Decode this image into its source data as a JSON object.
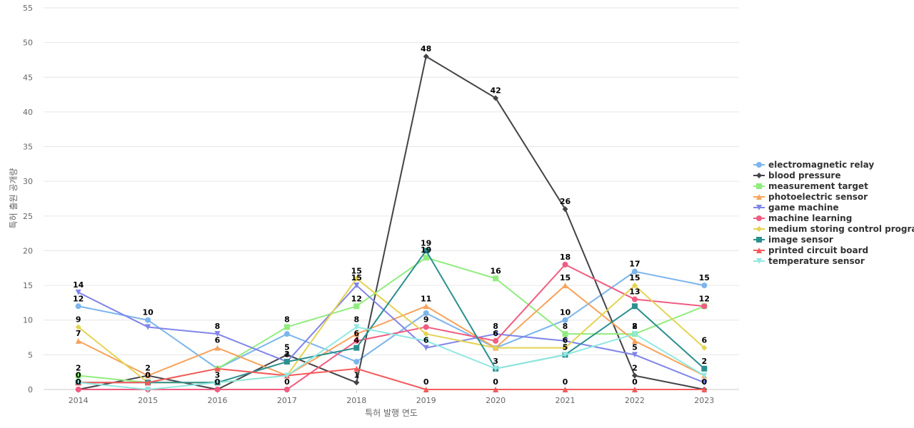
{
  "chart_data": {
    "type": "line",
    "categories": [
      "2014",
      "2015",
      "2016",
      "2017",
      "2018",
      "2019",
      "2020",
      "2021",
      "2022",
      "2023"
    ],
    "xlabel": "특허 발행 연도",
    "ylabel": "특허 출원 공개량",
    "ylim": [
      0,
      55
    ],
    "yticks": [
      0,
      5,
      10,
      15,
      20,
      25,
      30,
      35,
      40,
      45,
      50,
      55
    ],
    "grid": "horizontal",
    "legend_position": "right",
    "series": [
      {
        "name": "electromagnetic relay",
        "color": "#7cb5ec",
        "marker": "circle",
        "values": [
          12,
          10,
          3,
          8,
          4,
          11,
          6,
          10,
          17,
          15
        ]
      },
      {
        "name": "blood pressure",
        "color": "#434348",
        "marker": "diamond",
        "values": [
          0,
          2,
          0,
          5,
          1,
          48,
          42,
          26,
          2,
          0
        ]
      },
      {
        "name": "measurement target",
        "color": "#90ed7d",
        "marker": "square",
        "values": [
          2,
          1,
          3,
          9,
          12,
          19,
          16,
          8,
          8,
          12
        ]
      },
      {
        "name": "photoelectric sensor",
        "color": "#f7a35c",
        "marker": "triangle",
        "values": [
          7,
          2,
          6,
          2,
          8,
          12,
          6,
          15,
          7,
          2
        ]
      },
      {
        "name": "game machine",
        "color": "#8085e9",
        "marker": "triangle-down",
        "values": [
          14,
          9,
          8,
          4,
          15,
          6,
          8,
          7,
          5,
          1
        ]
      },
      {
        "name": "machine learning",
        "color": "#f15c80",
        "marker": "circle",
        "values": [
          0,
          0,
          0,
          0,
          7,
          9,
          7,
          18,
          13,
          12
        ]
      },
      {
        "name": "medium storing control program",
        "color": "#e4d354",
        "marker": "diamond",
        "values": [
          9,
          1,
          1,
          2,
          16,
          8,
          6,
          6,
          15,
          6
        ]
      },
      {
        "name": "image sensor",
        "color": "#2b908f",
        "marker": "square",
        "values": [
          1,
          1,
          1,
          4,
          6,
          20,
          3,
          5,
          12,
          3
        ]
      },
      {
        "name": "printed circuit board",
        "color": "#f45b5b",
        "marker": "triangle",
        "values": [
          1,
          1,
          3,
          2,
          3,
          0,
          0,
          0,
          0,
          0
        ]
      },
      {
        "name": "temperature sensor",
        "color": "#91e8e1",
        "marker": "triangle-down",
        "values": [
          1,
          0,
          1,
          2,
          9,
          7,
          3,
          5,
          8,
          2
        ]
      }
    ],
    "data_labels": [
      {
        "series": 0,
        "index": 0,
        "text": "12"
      },
      {
        "series": 0,
        "index": 1,
        "text": "10"
      },
      {
        "series": 0,
        "index": 8,
        "text": "17"
      },
      {
        "series": 0,
        "index": 9,
        "text": "15"
      },
      {
        "series": 0,
        "index": 7,
        "text": "10"
      },
      {
        "series": 1,
        "index": 0,
        "text": "0"
      },
      {
        "series": 1,
        "index": 3,
        "text": "5"
      },
      {
        "series": 1,
        "index": 4,
        "text": "1"
      },
      {
        "series": 1,
        "index": 5,
        "text": "48"
      },
      {
        "series": 1,
        "index": 6,
        "text": "42"
      },
      {
        "series": 1,
        "index": 7,
        "text": "26"
      },
      {
        "series": 1,
        "index": 8,
        "text": "2"
      },
      {
        "series": 1,
        "index": 9,
        "text": "0"
      },
      {
        "series": 2,
        "index": 0,
        "text": "2"
      },
      {
        "series": 2,
        "index": 3,
        "text": "8"
      },
      {
        "series": 2,
        "index": 4,
        "text": "12"
      },
      {
        "series": 2,
        "index": 5,
        "text": "19"
      },
      {
        "series": 2,
        "index": 6,
        "text": "16"
      },
      {
        "series": 2,
        "index": 7,
        "text": "8"
      },
      {
        "series": 2,
        "index": 8,
        "text": "8"
      },
      {
        "series": 2,
        "index": 9,
        "text": "12"
      },
      {
        "series": 3,
        "index": 0,
        "text": "7"
      },
      {
        "series": 3,
        "index": 1,
        "text": "2"
      },
      {
        "series": 3,
        "index": 2,
        "text": "6"
      },
      {
        "series": 3,
        "index": 5,
        "text": "11"
      },
      {
        "series": 3,
        "index": 7,
        "text": "15"
      },
      {
        "series": 4,
        "index": 0,
        "text": "14"
      },
      {
        "series": 4,
        "index": 2,
        "text": "8"
      },
      {
        "series": 4,
        "index": 4,
        "text": "15"
      },
      {
        "series": 4,
        "index": 5,
        "text": "6"
      },
      {
        "series": 4,
        "index": 6,
        "text": "8"
      },
      {
        "series": 4,
        "index": 8,
        "text": "5"
      },
      {
        "series": 5,
        "index": 0,
        "text": "0"
      },
      {
        "series": 5,
        "index": 2,
        "text": "0"
      },
      {
        "series": 5,
        "index": 3,
        "text": "0"
      },
      {
        "series": 5,
        "index": 4,
        "text": "6"
      },
      {
        "series": 5,
        "index": 5,
        "text": "9"
      },
      {
        "series": 5,
        "index": 6,
        "text": "6"
      },
      {
        "series": 5,
        "index": 7,
        "text": "18"
      },
      {
        "series": 5,
        "index": 8,
        "text": "13"
      },
      {
        "series": 6,
        "index": 0,
        "text": "9"
      },
      {
        "series": 6,
        "index": 2,
        "text": "3"
      },
      {
        "series": 6,
        "index": 4,
        "text": "15"
      },
      {
        "series": 6,
        "index": 7,
        "text": "6"
      },
      {
        "series": 6,
        "index": 8,
        "text": "15"
      },
      {
        "series": 6,
        "index": 9,
        "text": "6"
      },
      {
        "series": 7,
        "index": 3,
        "text": "2"
      },
      {
        "series": 7,
        "index": 4,
        "text": "4"
      },
      {
        "series": 7,
        "index": 5,
        "text": "19"
      },
      {
        "series": 7,
        "index": 6,
        "text": "3"
      },
      {
        "series": 7,
        "index": 7,
        "text": "5"
      },
      {
        "series": 7,
        "index": 9,
        "text": "2"
      },
      {
        "series": 8,
        "index": 1,
        "text": "0"
      },
      {
        "series": 8,
        "index": 5,
        "text": "0"
      },
      {
        "series": 8,
        "index": 6,
        "text": "0"
      },
      {
        "series": 8,
        "index": 7,
        "text": "0"
      },
      {
        "series": 8,
        "index": 8,
        "text": "0"
      },
      {
        "series": 9,
        "index": 0,
        "text": "0"
      },
      {
        "series": 9,
        "index": 4,
        "text": "8"
      },
      {
        "series": 9,
        "index": 8,
        "text": "2"
      }
    ]
  }
}
